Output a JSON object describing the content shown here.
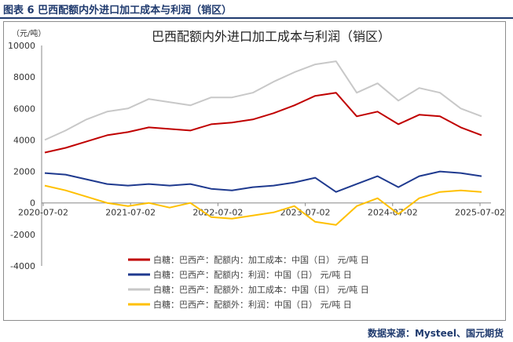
{
  "figure": {
    "label": "图表 6 巴西配额内外进口加工成本与利润（销区）",
    "source": "数据来源：Mysteel、国元期货"
  },
  "chart_data": {
    "type": "line",
    "title": "巴西配额内外进口加工成本与利润（销区）",
    "unit_label": "（元/吨）",
    "ylim": [
      -4000,
      10000
    ],
    "y_ticks": [
      "10000",
      "8000",
      "6000",
      "4000",
      "2000",
      "0",
      "-2000",
      "-4000"
    ],
    "x_ticks": [
      "2020-07-02",
      "2021-07-02",
      "2022-07-02",
      "2023-07-02",
      "2024-07-02",
      "2025-07-02"
    ],
    "grid": false,
    "legend_position": "bottom",
    "x": [
      "2020-07",
      "2020-10",
      "2021-01",
      "2021-04",
      "2021-07",
      "2021-10",
      "2022-01",
      "2022-04",
      "2022-07",
      "2022-10",
      "2023-01",
      "2023-04",
      "2023-07",
      "2023-10",
      "2023-12",
      "2024-01",
      "2024-04",
      "2024-07",
      "2024-10",
      "2025-01",
      "2025-04",
      "2025-07"
    ],
    "series": [
      {
        "name": "白糖：巴西产：配额内：加工成本：中国（日） 元/吨 日",
        "color": "#c00000",
        "values": [
          3200,
          3500,
          3900,
          4300,
          4500,
          4800,
          4700,
          4600,
          5000,
          5100,
          5300,
          5700,
          6200,
          6800,
          7000,
          5500,
          5800,
          5000,
          5600,
          5500,
          4800,
          4300
        ]
      },
      {
        "name": "白糖：巴西产：配额内：利润：中国（日） 元/吨 日",
        "color": "#1f3a8f",
        "values": [
          1900,
          1800,
          1500,
          1200,
          1100,
          1200,
          1100,
          1200,
          900,
          800,
          1000,
          1100,
          1300,
          1600,
          700,
          1200,
          1700,
          1000,
          1700,
          2000,
          1900,
          1700
        ]
      },
      {
        "name": "白糖：巴西产：配额外：加工成本：中国（日） 元/吨 日",
        "color": "#c8c8c8",
        "values": [
          4000,
          4600,
          5300,
          5800,
          6000,
          6600,
          6400,
          6200,
          6700,
          6700,
          7000,
          7700,
          8300,
          8800,
          9000,
          7000,
          7600,
          6500,
          7300,
          7000,
          6000,
          5500
        ]
      },
      {
        "name": "白糖：巴西产：配额外：利润：中国（日） 元/吨 日",
        "color": "#ffc000",
        "values": [
          1100,
          800,
          400,
          0,
          -200,
          0,
          -300,
          0,
          -900,
          -1000,
          -800,
          -600,
          -200,
          -1200,
          -1400,
          -200,
          300,
          -700,
          300,
          700,
          800,
          700
        ]
      }
    ]
  }
}
